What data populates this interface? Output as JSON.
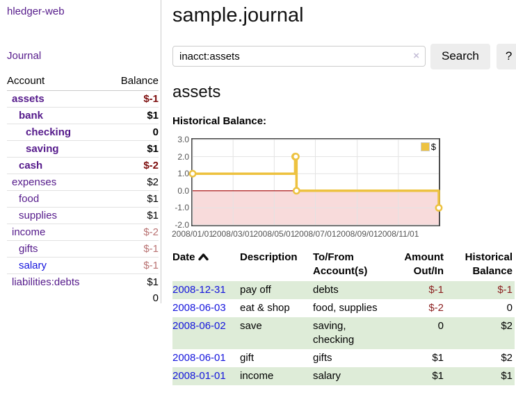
{
  "colors": {
    "purple": "#551a8b",
    "blue": "#1414dd",
    "negStrong": "#7d0d0d",
    "negSoft": "#b97272",
    "negTable": "#8b1f1f",
    "rowGreen": "#deecd8",
    "gold": "#edc240",
    "pink": "#f8dbdb",
    "zeroLine": "#a40000",
    "grid": "#e3e3e3",
    "borderGrey": "#cccccc",
    "chartBorder": "#4d4d4d",
    "axisText": "#545454",
    "btnBg": "#ededed"
  },
  "app": {
    "brand": "hledger-web",
    "nav_journal": "Journal"
  },
  "sidebar": {
    "headers": {
      "account": "Account",
      "balance": "Balance"
    },
    "accounts": [
      {
        "name": "assets",
        "depth": 0,
        "bold": true,
        "blue": false,
        "balance": "$-1",
        "balance_style": "neg-strong"
      },
      {
        "name": "bank",
        "depth": 1,
        "bold": true,
        "blue": false,
        "balance": "$1",
        "balance_style": ""
      },
      {
        "name": "checking",
        "depth": 2,
        "bold": true,
        "blue": false,
        "balance": "0",
        "balance_style": ""
      },
      {
        "name": "saving",
        "depth": 2,
        "bold": true,
        "blue": false,
        "balance": "$1",
        "balance_style": ""
      },
      {
        "name": "cash",
        "depth": 1,
        "bold": true,
        "blue": false,
        "balance": "$-2",
        "balance_style": "neg-strong"
      },
      {
        "name": "expenses",
        "depth": 0,
        "bold": false,
        "blue": false,
        "balance": "$2",
        "balance_style": ""
      },
      {
        "name": "food",
        "depth": 1,
        "bold": false,
        "blue": false,
        "balance": "$1",
        "balance_style": ""
      },
      {
        "name": "supplies",
        "depth": 1,
        "bold": false,
        "blue": false,
        "balance": "$1",
        "balance_style": ""
      },
      {
        "name": "income",
        "depth": 0,
        "bold": false,
        "blue": false,
        "balance": "$-2",
        "balance_style": "neg-soft"
      },
      {
        "name": "gifts",
        "depth": 1,
        "bold": false,
        "blue": false,
        "balance": "$-1",
        "balance_style": "neg-soft"
      },
      {
        "name": "salary",
        "depth": 1,
        "bold": false,
        "blue": true,
        "balance": "$-1",
        "balance_style": "neg-soft"
      },
      {
        "name": "liabilities:debts",
        "depth": 0,
        "bold": false,
        "blue": false,
        "balance": "$1",
        "balance_style": ""
      }
    ],
    "total": "0"
  },
  "header": {
    "title": "sample.journal"
  },
  "search": {
    "value": "inacct:assets",
    "clear_icon": "×",
    "button_label": "Search",
    "help_label": "?"
  },
  "account_page": {
    "heading": "assets"
  },
  "chart_data": {
    "type": "line",
    "title": "Historical Balance:",
    "legend": {
      "label": "$",
      "position": "top-right"
    },
    "series": [
      {
        "name": "$",
        "step": true,
        "points": [
          [
            "2008-01-01",
            1
          ],
          [
            "2008-06-01",
            2
          ],
          [
            "2008-06-02",
            2
          ],
          [
            "2008-06-03",
            0
          ],
          [
            "2008-12-31",
            -1
          ]
        ]
      }
    ],
    "x_range": [
      "2008-01-01",
      "2008-12-31"
    ],
    "x_ticks": [
      "2008-01-01",
      "2008-03-01",
      "2008-05-01",
      "2008-07-01",
      "2008-09-01",
      "2008-11-01"
    ],
    "x_tick_labels": [
      "2008/01/01",
      "2008/03/01",
      "2008/05/01",
      "2008/07/01",
      "2008/09/01",
      "2008/11/01"
    ],
    "ylim": [
      -2,
      3
    ],
    "y_ticks": [
      3.0,
      2.0,
      1.0,
      0.0,
      -1.0,
      -2.0
    ],
    "grid": true,
    "negative_region_shaded": true
  },
  "register": {
    "columns": {
      "date": "Date",
      "description": "Description",
      "tofrom": "To/From Account(s)",
      "amount": "Amount Out/In",
      "balance": "Historical Balance"
    },
    "sort": {
      "column": "date",
      "direction": "ascending"
    },
    "rows": [
      {
        "date": "2008-12-31",
        "description": "pay off",
        "accounts": "debts",
        "amount": "$-1",
        "amount_neg": true,
        "balance": "$-1",
        "balance_neg": true,
        "shade": true
      },
      {
        "date": "2008-06-03",
        "description": "eat & shop",
        "accounts": "food, supplies",
        "amount": "$-2",
        "amount_neg": true,
        "balance": "0",
        "balance_neg": false,
        "shade": false
      },
      {
        "date": "2008-06-02",
        "description": "save",
        "accounts": "saving, checking",
        "amount": "0",
        "amount_neg": false,
        "balance": "$2",
        "balance_neg": false,
        "shade": true
      },
      {
        "date": "2008-06-01",
        "description": "gift",
        "accounts": "gifts",
        "amount": "$1",
        "amount_neg": false,
        "balance": "$2",
        "balance_neg": false,
        "shade": false
      },
      {
        "date": "2008-01-01",
        "description": "income",
        "accounts": "salary",
        "amount": "$1",
        "amount_neg": false,
        "balance": "$1",
        "balance_neg": false,
        "shade": true
      }
    ]
  }
}
